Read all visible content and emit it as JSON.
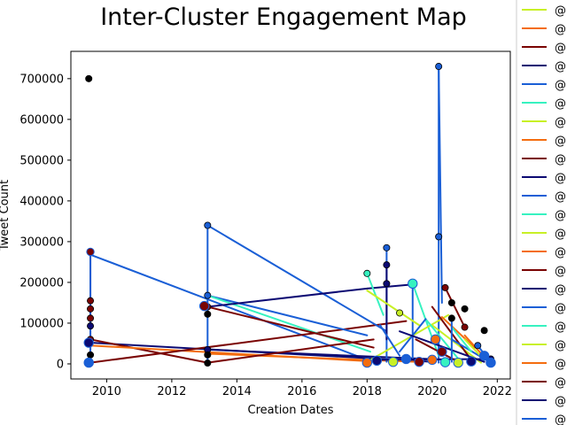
{
  "chart_data": {
    "type": "line",
    "title": "Inter-Cluster Engagement Map",
    "xlabel": "Creation Dates",
    "ylabel": "Tweet Count",
    "xlim": [
      2008.9,
      2022.4
    ],
    "ylim": [
      -37000,
      767000
    ],
    "xticks": [
      2010,
      2012,
      2014,
      2016,
      2018,
      2020,
      2022
    ],
    "yticks": [
      0,
      100000,
      200000,
      300000,
      400000,
      500000,
      600000,
      700000
    ],
    "grid": false,
    "legend": {
      "placement": "right, outside plot",
      "entries": [
        "@",
        "@",
        "@",
        "@",
        "@",
        "@",
        "@",
        "@",
        "@",
        "@",
        "@",
        "@",
        "@",
        "@",
        "@",
        "@",
        "@",
        "@",
        "@",
        "@",
        "@",
        "@",
        "@",
        "@"
      ],
      "colors": [
        "#c8f026",
        "#f46d0f",
        "#7a0403",
        "#0c0a73",
        "#1a5fd6",
        "#37f2c0",
        "#c8f026",
        "#f46d0f",
        "#7a0403",
        "#0c0a73",
        "#1a5fd6",
        "#37f2c0",
        "#c8f026",
        "#f46d0f",
        "#7a0403",
        "#0c0a73",
        "#1a5fd6",
        "#37f2c0",
        "#c8f026",
        "#f46d0f",
        "#7a0403",
        "#0c0a73",
        "#1a5fd6",
        "#37f2c0"
      ]
    },
    "points": [
      {
        "x": 2009.45,
        "y": 700000,
        "color": "#000000"
      },
      {
        "x": 2009.5,
        "y": 275000,
        "color": "#7a0403"
      },
      {
        "x": 2009.5,
        "y": 155000,
        "color": "#7a0403"
      },
      {
        "x": 2009.5,
        "y": 135000,
        "color": "#7a0403"
      },
      {
        "x": 2009.5,
        "y": 112000,
        "color": "#7a0403"
      },
      {
        "x": 2009.5,
        "y": 93000,
        "color": "#0c0a73"
      },
      {
        "x": 2009.5,
        "y": 60000,
        "color": "#7a0403"
      },
      {
        "x": 2009.45,
        "y": 52000,
        "color": "#0c0a73"
      },
      {
        "x": 2009.5,
        "y": 22000,
        "color": "#000000"
      },
      {
        "x": 2009.45,
        "y": 3000,
        "color": "#1a5fd6"
      },
      {
        "x": 2013.1,
        "y": 340000,
        "color": "#1a5fd6"
      },
      {
        "x": 2013.1,
        "y": 168000,
        "color": "#1a5fd6"
      },
      {
        "x": 2013.1,
        "y": 140000,
        "color": "#7a0403"
      },
      {
        "x": 2013.1,
        "y": 122000,
        "color": "#000000"
      },
      {
        "x": 2013.1,
        "y": 35000,
        "color": "#0c0a73"
      },
      {
        "x": 2013.1,
        "y": 22000,
        "color": "#000000"
      },
      {
        "x": 2013.1,
        "y": 2000,
        "color": "#000000"
      },
      {
        "x": 2018.0,
        "y": 222000,
        "color": "#37f2c0"
      },
      {
        "x": 2018.6,
        "y": 285000,
        "color": "#1a5fd6"
      },
      {
        "x": 2018.6,
        "y": 243000,
        "color": "#0c0a73"
      },
      {
        "x": 2018.6,
        "y": 197000,
        "color": "#0c0a73"
      },
      {
        "x": 2019.4,
        "y": 197000,
        "color": "#1a5fd6"
      },
      {
        "x": 2019.0,
        "y": 125000,
        "color": "#c8f026"
      },
      {
        "x": 2020.2,
        "y": 730000,
        "color": "#1a5fd6"
      },
      {
        "x": 2020.2,
        "y": 312000,
        "color": "#1a5fd6"
      },
      {
        "x": 2020.4,
        "y": 187000,
        "color": "#7a0403"
      },
      {
        "x": 2020.6,
        "y": 150000,
        "color": "#000000"
      },
      {
        "x": 2020.6,
        "y": 112000,
        "color": "#000000"
      },
      {
        "x": 2021.0,
        "y": 135000,
        "color": "#000000"
      },
      {
        "x": 2021.6,
        "y": 82000,
        "color": "#000000"
      },
      {
        "x": 2021.0,
        "y": 90000,
        "color": "#7a0403"
      },
      {
        "x": 2021.4,
        "y": 45000,
        "color": "#1a5fd6"
      },
      {
        "x": 2021.8,
        "y": 12000,
        "color": "#0c0a73"
      },
      {
        "x": 2021.8,
        "y": 3000,
        "color": "#1a5fd6"
      }
    ],
    "segments": [
      {
        "color": "#7a0403",
        "x": [
          2009.5,
          2009.5
        ],
        "y": [
          275000,
          20000
        ]
      },
      {
        "color": "#1a5fd6",
        "x": [
          2009.5,
          2009.5
        ],
        "y": [
          268000,
          3000
        ]
      },
      {
        "color": "#1a5fd6",
        "x": [
          2009.5,
          2018.0
        ],
        "y": [
          268000,
          10000
        ]
      },
      {
        "color": "#0c0a73",
        "x": [
          2009.5,
          2020.0
        ],
        "y": [
          52000,
          5000
        ]
      },
      {
        "color": "#7a0403",
        "x": [
          2009.5,
          2013.1
        ],
        "y": [
          60000,
          3000
        ]
      },
      {
        "color": "#f46d0f",
        "x": [
          2009.5,
          2018.4
        ],
        "y": [
          45000,
          5000
        ]
      },
      {
        "color": "#7a0403",
        "x": [
          2009.5,
          2019.2
        ],
        "y": [
          3000,
          105000
        ]
      },
      {
        "color": "#1a5fd6",
        "x": [
          2013.1,
          2013.1
        ],
        "y": [
          340000,
          3000
        ]
      },
      {
        "color": "#1a5fd6",
        "x": [
          2013.1,
          2018.6
        ],
        "y": [
          340000,
          80000
        ]
      },
      {
        "color": "#1a5fd6",
        "x": [
          2013.1,
          2018.0
        ],
        "y": [
          168000,
          70000
        ]
      },
      {
        "color": "#37f2c0",
        "x": [
          2013.1,
          2018.1
        ],
        "y": [
          168000,
          30000
        ]
      },
      {
        "color": "#0c0a73",
        "x": [
          2013.1,
          2018.0
        ],
        "y": [
          140000,
          185000
        ]
      },
      {
        "color": "#7a0403",
        "x": [
          2013.1,
          2018.2
        ],
        "y": [
          140000,
          40000
        ]
      },
      {
        "color": "#0c0a73",
        "x": [
          2013.1,
          2020.5
        ],
        "y": [
          35000,
          10000
        ]
      },
      {
        "color": "#f46d0f",
        "x": [
          2013.1,
          2019.5
        ],
        "y": [
          25000,
          5000
        ]
      },
      {
        "color": "#7a0403",
        "x": [
          2013.1,
          2018.2
        ],
        "y": [
          3000,
          60000
        ]
      },
      {
        "color": "#0c0a73",
        "x": [
          2018.0,
          2019.4
        ],
        "y": [
          185000,
          195000
        ]
      },
      {
        "color": "#37f2c0",
        "x": [
          2018.0,
          2018.5
        ],
        "y": [
          222000,
          120000
        ]
      },
      {
        "color": "#1a5fd6",
        "x": [
          2018.6,
          2018.6
        ],
        "y": [
          285000,
          5000
        ]
      },
      {
        "color": "#0c0a73",
        "x": [
          2018.6,
          2018.6
        ],
        "y": [
          243000,
          60000
        ]
      },
      {
        "color": "#1a5fd6",
        "x": [
          2020.2,
          2020.2
        ],
        "y": [
          730000,
          3000
        ]
      },
      {
        "color": "#1a5fd6",
        "x": [
          2020.2,
          2020.3
        ],
        "y": [
          730000,
          150000
        ]
      },
      {
        "color": "#37f2c0",
        "x": [
          2019.4,
          2020.2
        ],
        "y": [
          197000,
          20000
        ]
      },
      {
        "color": "#1a5fd6",
        "x": [
          2019.4,
          2019.4
        ],
        "y": [
          197000,
          10000
        ]
      },
      {
        "color": "#c8f026",
        "x": [
          2018.0,
          2019.6
        ],
        "y": [
          180000,
          95000
        ]
      },
      {
        "color": "#c8f026",
        "x": [
          2018.0,
          2020.5
        ],
        "y": [
          5000,
          120000
        ]
      },
      {
        "color": "#c8f026",
        "x": [
          2020.0,
          2021.5
        ],
        "y": [
          95000,
          3000
        ]
      },
      {
        "color": "#37f2c0",
        "x": [
          2019.8,
          2020.9
        ],
        "y": [
          110000,
          3000
        ]
      },
      {
        "color": "#f46d0f",
        "x": [
          2020.3,
          2021.3
        ],
        "y": [
          115000,
          40000
        ]
      },
      {
        "color": "#7a0403",
        "x": [
          2020.4,
          2021.0
        ],
        "y": [
          187000,
          90000
        ]
      },
      {
        "color": "#7a0403",
        "x": [
          2020.0,
          2021.2
        ],
        "y": [
          140000,
          10000
        ]
      },
      {
        "color": "#1a5fd6",
        "x": [
          2018.4,
          2019.0
        ],
        "y": [
          95000,
          20000
        ]
      },
      {
        "color": "#1a5fd6",
        "x": [
          2019.0,
          2019.8
        ],
        "y": [
          30000,
          110000
        ]
      },
      {
        "color": "#0c0a73",
        "x": [
          2018.2,
          2021.8
        ],
        "y": [
          10000,
          12000
        ]
      },
      {
        "color": "#0c0a73",
        "x": [
          2019.0,
          2021.6
        ],
        "y": [
          80000,
          5000
        ]
      },
      {
        "color": "#1a5fd6",
        "x": [
          2020.6,
          2021.8
        ],
        "y": [
          60000,
          3000
        ]
      },
      {
        "color": "#37f2c0",
        "x": [
          2020.6,
          2021.2
        ],
        "y": [
          90000,
          30000
        ]
      },
      {
        "color": "#c8f026",
        "x": [
          2021.0,
          2021.6
        ],
        "y": [
          60000,
          10000
        ]
      },
      {
        "color": "#f46d0f",
        "x": [
          2021.0,
          2021.7
        ],
        "y": [
          70000,
          8000
        ]
      },
      {
        "color": "#1a5fd6",
        "x": [
          2021.4,
          2021.8
        ],
        "y": [
          45000,
          3000
        ]
      },
      {
        "color": "#7a0403",
        "x": [
          2019.5,
          2020.8
        ],
        "y": [
          60000,
          5000
        ]
      },
      {
        "color": "#1a5fd6",
        "x": [
          2020.6,
          2020.6
        ],
        "y": [
          112000,
          5000
        ]
      }
    ],
    "markers": [
      {
        "x": 2009.5,
        "y": 275000,
        "color": "#7a0403",
        "size": "medium"
      },
      {
        "x": 2009.45,
        "y": 52000,
        "color": "#0c0a73",
        "size": "large"
      },
      {
        "x": 2009.45,
        "y": 3000,
        "color": "#1a5fd6",
        "size": "large"
      },
      {
        "x": 2013.0,
        "y": 142000,
        "color": "#7a0403",
        "size": "large"
      },
      {
        "x": 2019.4,
        "y": 197000,
        "color": "#37f2c0",
        "size": "large"
      },
      {
        "x": 2018.0,
        "y": 3000,
        "color": "#f46d0f",
        "size": "large"
      },
      {
        "x": 2018.3,
        "y": 8000,
        "color": "#0c0a73",
        "size": "large"
      },
      {
        "x": 2018.8,
        "y": 5000,
        "color": "#c8f026",
        "size": "large"
      },
      {
        "x": 2019.2,
        "y": 12000,
        "color": "#1a5fd6",
        "size": "large"
      },
      {
        "x": 2019.6,
        "y": 5000,
        "color": "#7a0403",
        "size": "large"
      },
      {
        "x": 2020.0,
        "y": 10000,
        "color": "#f46d0f",
        "size": "large"
      },
      {
        "x": 2020.4,
        "y": 4000,
        "color": "#37f2c0",
        "size": "large"
      },
      {
        "x": 2020.8,
        "y": 3000,
        "color": "#c8f026",
        "size": "large"
      },
      {
        "x": 2021.2,
        "y": 6000,
        "color": "#0c0a73",
        "size": "large"
      },
      {
        "x": 2021.6,
        "y": 20000,
        "color": "#1a5fd6",
        "size": "large"
      },
      {
        "x": 2021.8,
        "y": 3000,
        "color": "#1a5fd6",
        "size": "large"
      },
      {
        "x": 2020.1,
        "y": 60000,
        "color": "#f46d0f",
        "size": "large"
      },
      {
        "x": 2020.3,
        "y": 30000,
        "color": "#7a0403",
        "size": "large"
      }
    ]
  }
}
